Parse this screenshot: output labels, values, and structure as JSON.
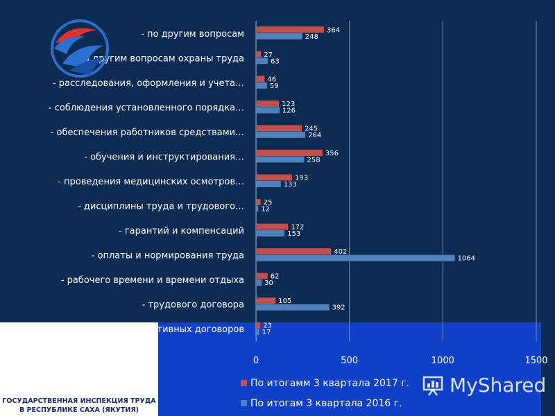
{
  "chart_data": {
    "type": "bar",
    "orientation": "horizontal",
    "categories": [
      "- по другим вопросам",
      "- по другим вопросам охраны труда",
      "- расследования, оформления и учета…",
      "- соблюдения установленного порядка…",
      "- обеспечения работников средствами…",
      "- обучения и инструктирования…",
      "- проведения медицинских осмотров…",
      "- дисциплины труда и трудового…",
      "- гарантий и компенсаций",
      "- оплаты и нормирования труда",
      "- рабочего времени и времени отдыха",
      "- трудового договора",
      "- коллективных договоров"
    ],
    "series": [
      {
        "name": "По итогамм 3 квартала 2017 г.",
        "color": "#c0504d",
        "values": [
          364,
          27,
          46,
          123,
          245,
          356,
          193,
          25,
          172,
          402,
          62,
          105,
          23
        ]
      },
      {
        "name": "По итогам 3 квартала 2016 г.",
        "color": "#4f81bd",
        "values": [
          248,
          63,
          59,
          126,
          264,
          258,
          133,
          12,
          153,
          1064,
          30,
          392,
          17
        ]
      }
    ],
    "xlim": [
      0,
      1500
    ],
    "xticks": [
      0,
      500,
      1000,
      1500
    ],
    "xtick_labels": [
      "0",
      "500",
      "1000",
      "1500"
    ],
    "grid": true,
    "legend_position": "bottom"
  },
  "org": {
    "line1": "ГОСУДАРСТВЕННАЯ ИНСПЕКЦИЯ ТРУДА",
    "line2": "В РЕСПУБЛИКЕ САХА (ЯКУТИЯ)"
  },
  "watermark": {
    "text": "MyShared",
    "icon": "presentation-board-icon"
  }
}
